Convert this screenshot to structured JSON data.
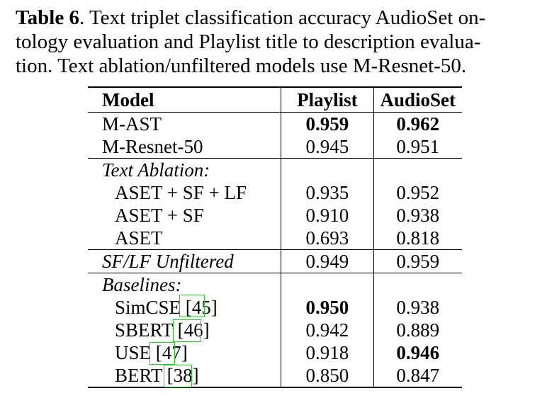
{
  "caption": {
    "label": "Table 6",
    "line1_rest": ". Text triplet classification accuracy AudioSet on-",
    "line2": "tology evaluation and Playlist title to description evalua-",
    "line3": "tion. Text ablation/unfiltered models use M-Resnet-50."
  },
  "table": {
    "headers": {
      "model": "Model",
      "playlist": "Playlist",
      "audioset": "AudioSet"
    },
    "rows": {
      "m_ast": {
        "model": "M-AST",
        "playlist": "0.959",
        "audioset": "0.962"
      },
      "m_resnet": {
        "model": "M-Resnet-50",
        "playlist": "0.945",
        "audioset": "0.951"
      },
      "text_ablation_label": "Text Ablation:",
      "aset_sf_lf": {
        "model": "ASET + SF + LF",
        "playlist": "0.935",
        "audioset": "0.952"
      },
      "aset_sf": {
        "model": "ASET + SF",
        "playlist": "0.910",
        "audioset": "0.938"
      },
      "aset": {
        "model": "ASET",
        "playlist": "0.693",
        "audioset": "0.818"
      },
      "sf_lf_unfiltered": {
        "model": "SF/LF Unfiltered",
        "playlist": "0.949",
        "audioset": "0.959"
      },
      "baselines_label": "Baselines:",
      "simcse": {
        "model": "SimCSE",
        "cite": "[45]",
        "playlist": "0.950",
        "audioset": "0.938"
      },
      "sbert": {
        "model": "SBERT",
        "cite": "[46]",
        "playlist": "0.942",
        "audioset": "0.889"
      },
      "use": {
        "model": "USE",
        "cite": "[47]",
        "playlist": "0.918",
        "audioset": "0.946"
      },
      "bert": {
        "model": "BERT",
        "cite": "[38]",
        "playlist": "0.850",
        "audioset": "0.847"
      }
    }
  },
  "colors": {
    "citation_box": "#22cc22"
  }
}
